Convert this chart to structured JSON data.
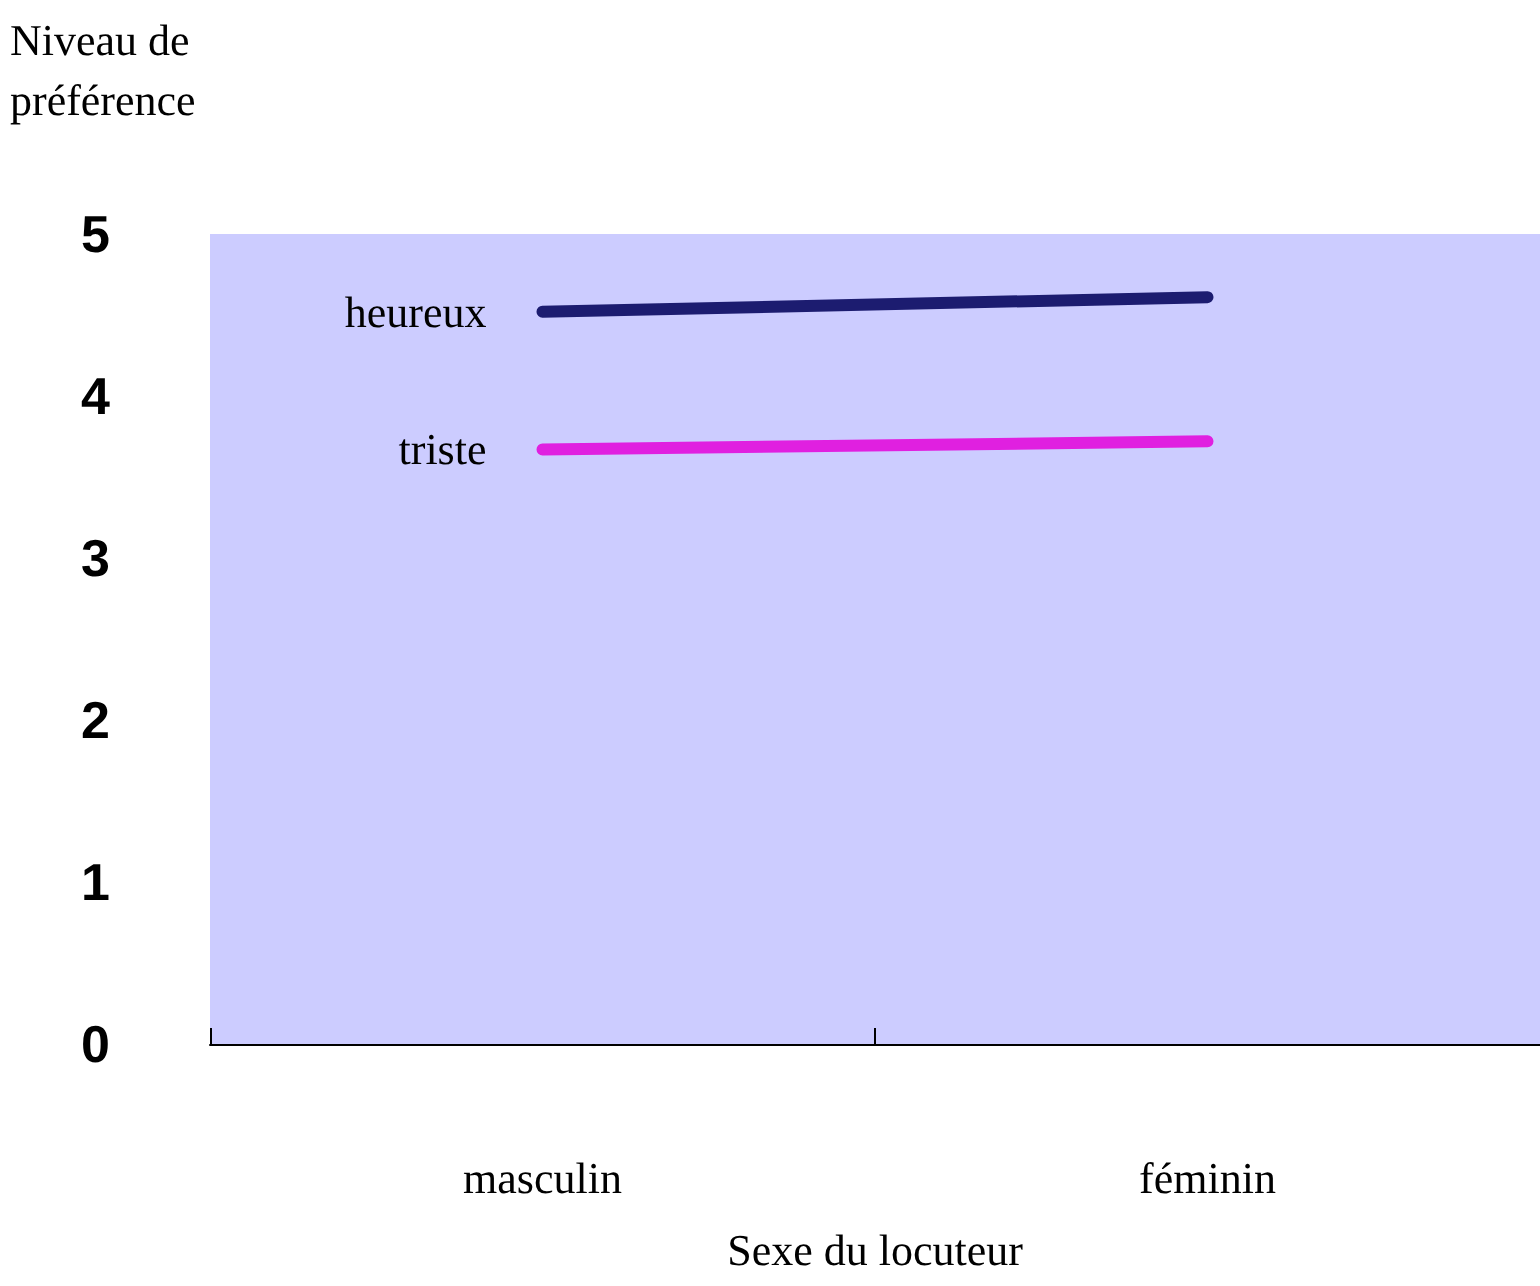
{
  "chart_data": {
    "type": "line",
    "ylabel": "Niveau de\npréférence",
    "xlabel": "Sexe du locuteur",
    "categories": [
      "masculin",
      "féminin"
    ],
    "series": [
      {
        "name": "heureux",
        "color": "#1c1c70",
        "values": [
          4.52,
          4.61
        ]
      },
      {
        "name": "triste",
        "color": "#e020e0",
        "values": [
          3.67,
          3.72
        ]
      }
    ],
    "ylim": [
      0,
      5
    ],
    "yticks": [
      0,
      1,
      2,
      3,
      4,
      5
    ],
    "grid": false,
    "legend": false,
    "marker": "none",
    "line_style": "solid"
  }
}
